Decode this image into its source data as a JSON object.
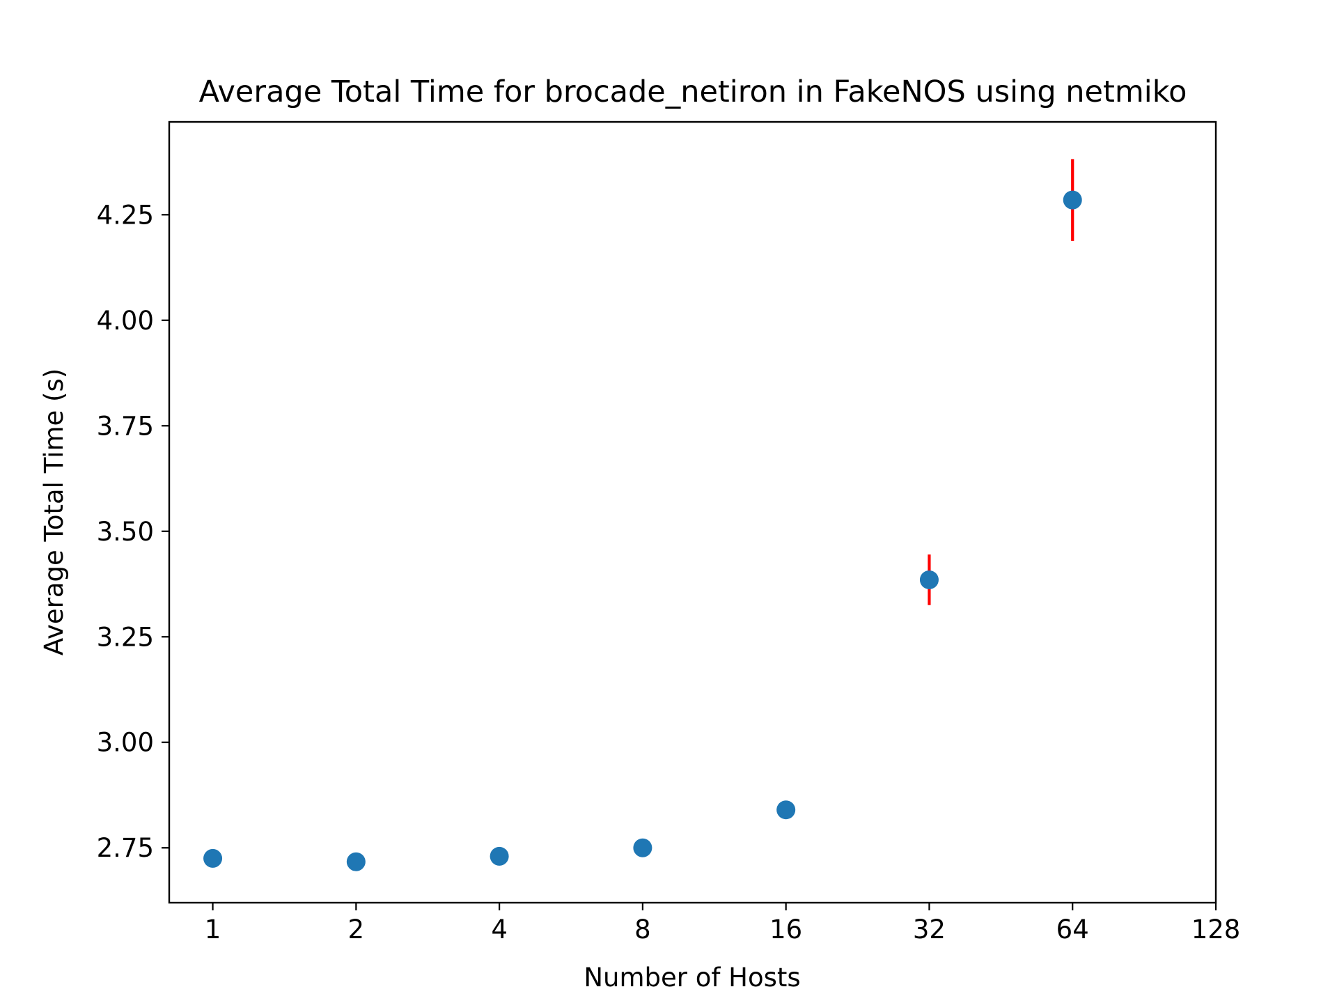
{
  "chart_data": {
    "type": "scatter",
    "title": "Average Total Time for brocade_netiron in FakeNOS using netmiko",
    "xlabel": "Number of Hosts",
    "ylabel": "Average Total Time (s)",
    "x_scale": "log2",
    "x_ticks": [
      "1",
      "2",
      "4",
      "8",
      "16",
      "32",
      "64",
      "128"
    ],
    "y_ticks": [
      "2.75",
      "3.00",
      "3.25",
      "3.50",
      "3.75",
      "4.00",
      "4.25"
    ],
    "xlim": [
      0.81,
      128
    ],
    "ylim": [
      2.62,
      4.47
    ],
    "grid": false,
    "legend": "none",
    "marker_color": "#1f77b4",
    "error_bar_color": "#ff0000",
    "points": [
      {
        "x": 1,
        "y": 2.725,
        "err": 0.0
      },
      {
        "x": 2,
        "y": 2.717,
        "err": 0.0
      },
      {
        "x": 4,
        "y": 2.73,
        "err": 0.0
      },
      {
        "x": 8,
        "y": 2.75,
        "err": 0.0
      },
      {
        "x": 16,
        "y": 2.84,
        "err": 0.0
      },
      {
        "x": 32,
        "y": 3.385,
        "err": 0.06
      },
      {
        "x": 64,
        "y": 4.285,
        "err": 0.097
      }
    ]
  }
}
